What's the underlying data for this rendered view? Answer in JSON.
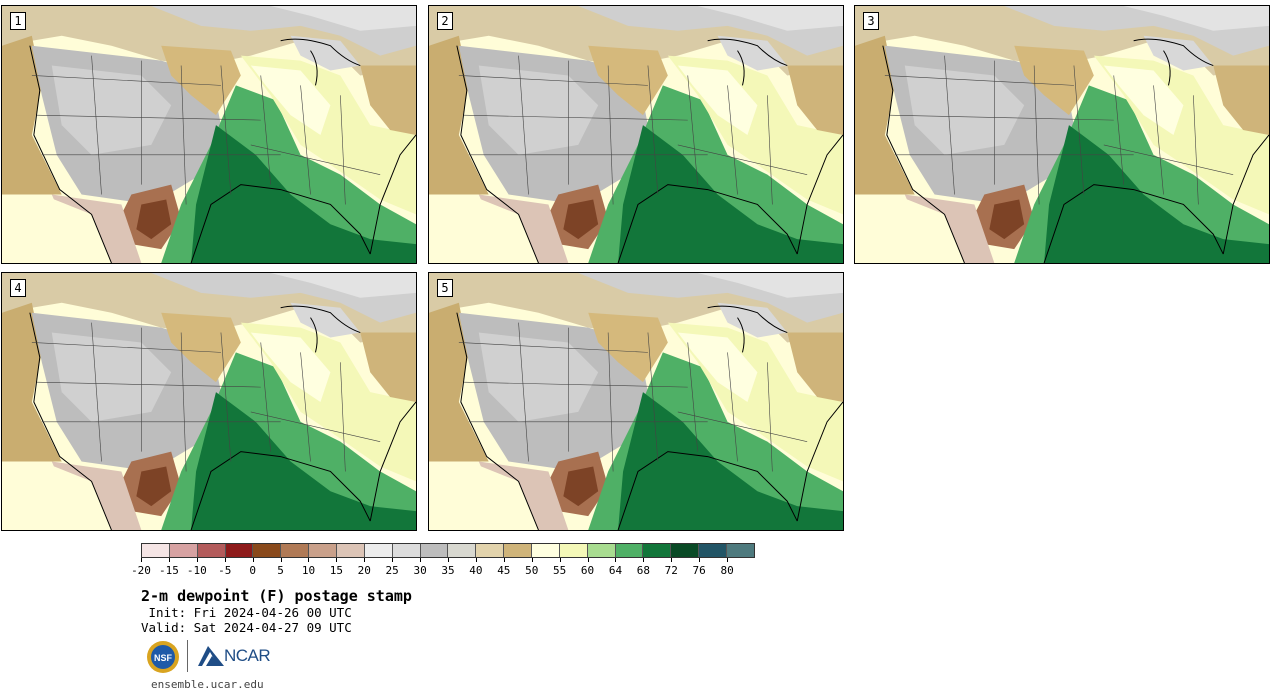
{
  "panels": [
    {
      "label": "1"
    },
    {
      "label": "2"
    },
    {
      "label": "3"
    },
    {
      "label": "4"
    },
    {
      "label": "5"
    }
  ],
  "colorbar": {
    "ticks": [
      "-20",
      "-15",
      "-10",
      "-5",
      "0",
      "5",
      "10",
      "15",
      "20",
      "25",
      "30",
      "35",
      "40",
      "45",
      "50",
      "55",
      "60",
      "64",
      "68",
      "72",
      "76",
      "80"
    ],
    "colors": [
      "#f5e5e5",
      "#d7a2a2",
      "#b35b5b",
      "#8e1b1b",
      "#8a4a1c",
      "#b07a56",
      "#c9a08a",
      "#dcc4b6",
      "#ececec",
      "#dcdcdc",
      "#bdbdbd",
      "#d8d8d0",
      "#e2d3ac",
      "#cfb47a",
      "#ffffe0",
      "#f4f8b8",
      "#a8dc90",
      "#4fb066",
      "#12763a",
      "#0a4a26",
      "#225566",
      "#4e7a7e"
    ]
  },
  "title": "2-m dewpoint (F) postage stamp",
  "init": " Init: Fri 2024-04-26 00 UTC",
  "valid": "Valid: Sat 2024-04-27 09 UTC",
  "logos": {
    "nsf": "NSF",
    "ncar": "NCAR"
  },
  "site": "ensemble.ucar.edu"
}
